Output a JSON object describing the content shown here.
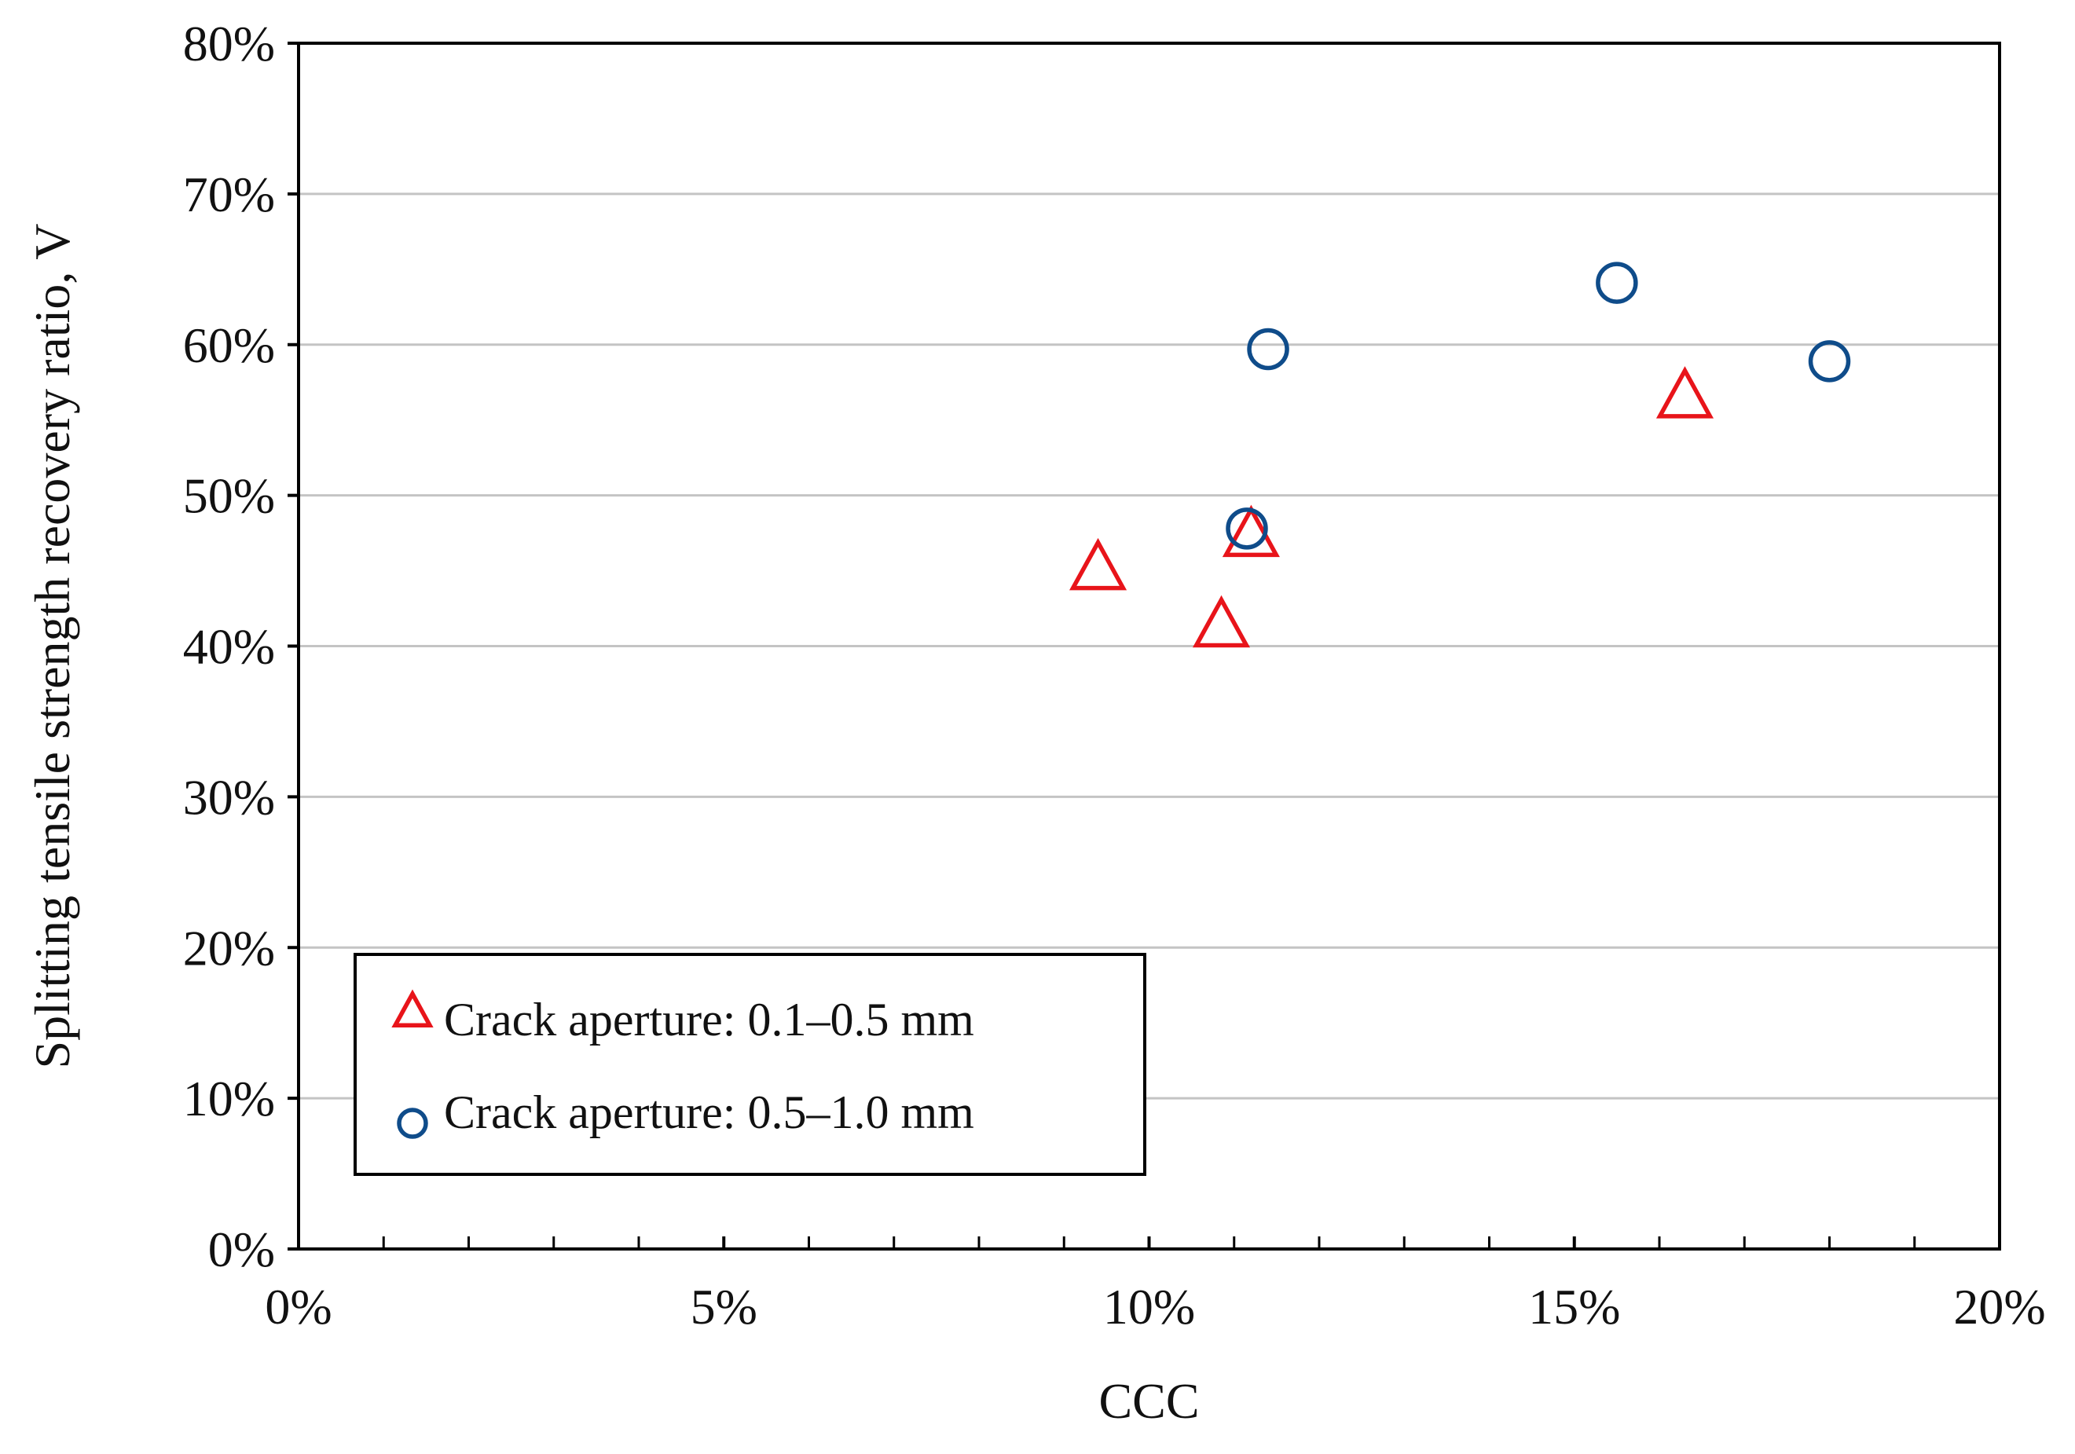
{
  "chart_data": {
    "type": "scatter",
    "title": "",
    "xlabel": "CCC",
    "ylabel": "Splitting tensile strength recovery ratio, V",
    "xlim": [
      0,
      20
    ],
    "ylim": [
      0,
      80
    ],
    "x_ticks": [
      0,
      5,
      10,
      15,
      20
    ],
    "x_tick_labels": [
      "0%",
      "5%",
      "10%",
      "15%",
      "20%"
    ],
    "x_minor_ticks": [
      1,
      2,
      3,
      4,
      6,
      7,
      8,
      9,
      11,
      12,
      13,
      14,
      16,
      17,
      18,
      19
    ],
    "y_ticks": [
      0,
      10,
      20,
      30,
      40,
      50,
      60,
      70,
      80
    ],
    "y_tick_labels": [
      "0%",
      "10%",
      "20%",
      "30%",
      "40%",
      "50%",
      "60%",
      "70%",
      "80%"
    ],
    "grid": "horizontal",
    "legend_position": "bottom-left",
    "series": [
      {
        "name": "Crack aperture: 0.1–0.5 mm",
        "marker": "triangle",
        "color": "#e8141a",
        "x": [
          9.4,
          10.85,
          11.2,
          16.3
        ],
        "y": [
          45.0,
          41.2,
          47.2,
          56.4
        ]
      },
      {
        "name": "Crack aperture: 0.5–1.0 mm",
        "marker": "circle",
        "color": "#0f4c8a",
        "x": [
          11.15,
          11.4,
          15.5,
          18.0
        ],
        "y": [
          47.8,
          59.7,
          64.1,
          58.9
        ]
      }
    ]
  }
}
